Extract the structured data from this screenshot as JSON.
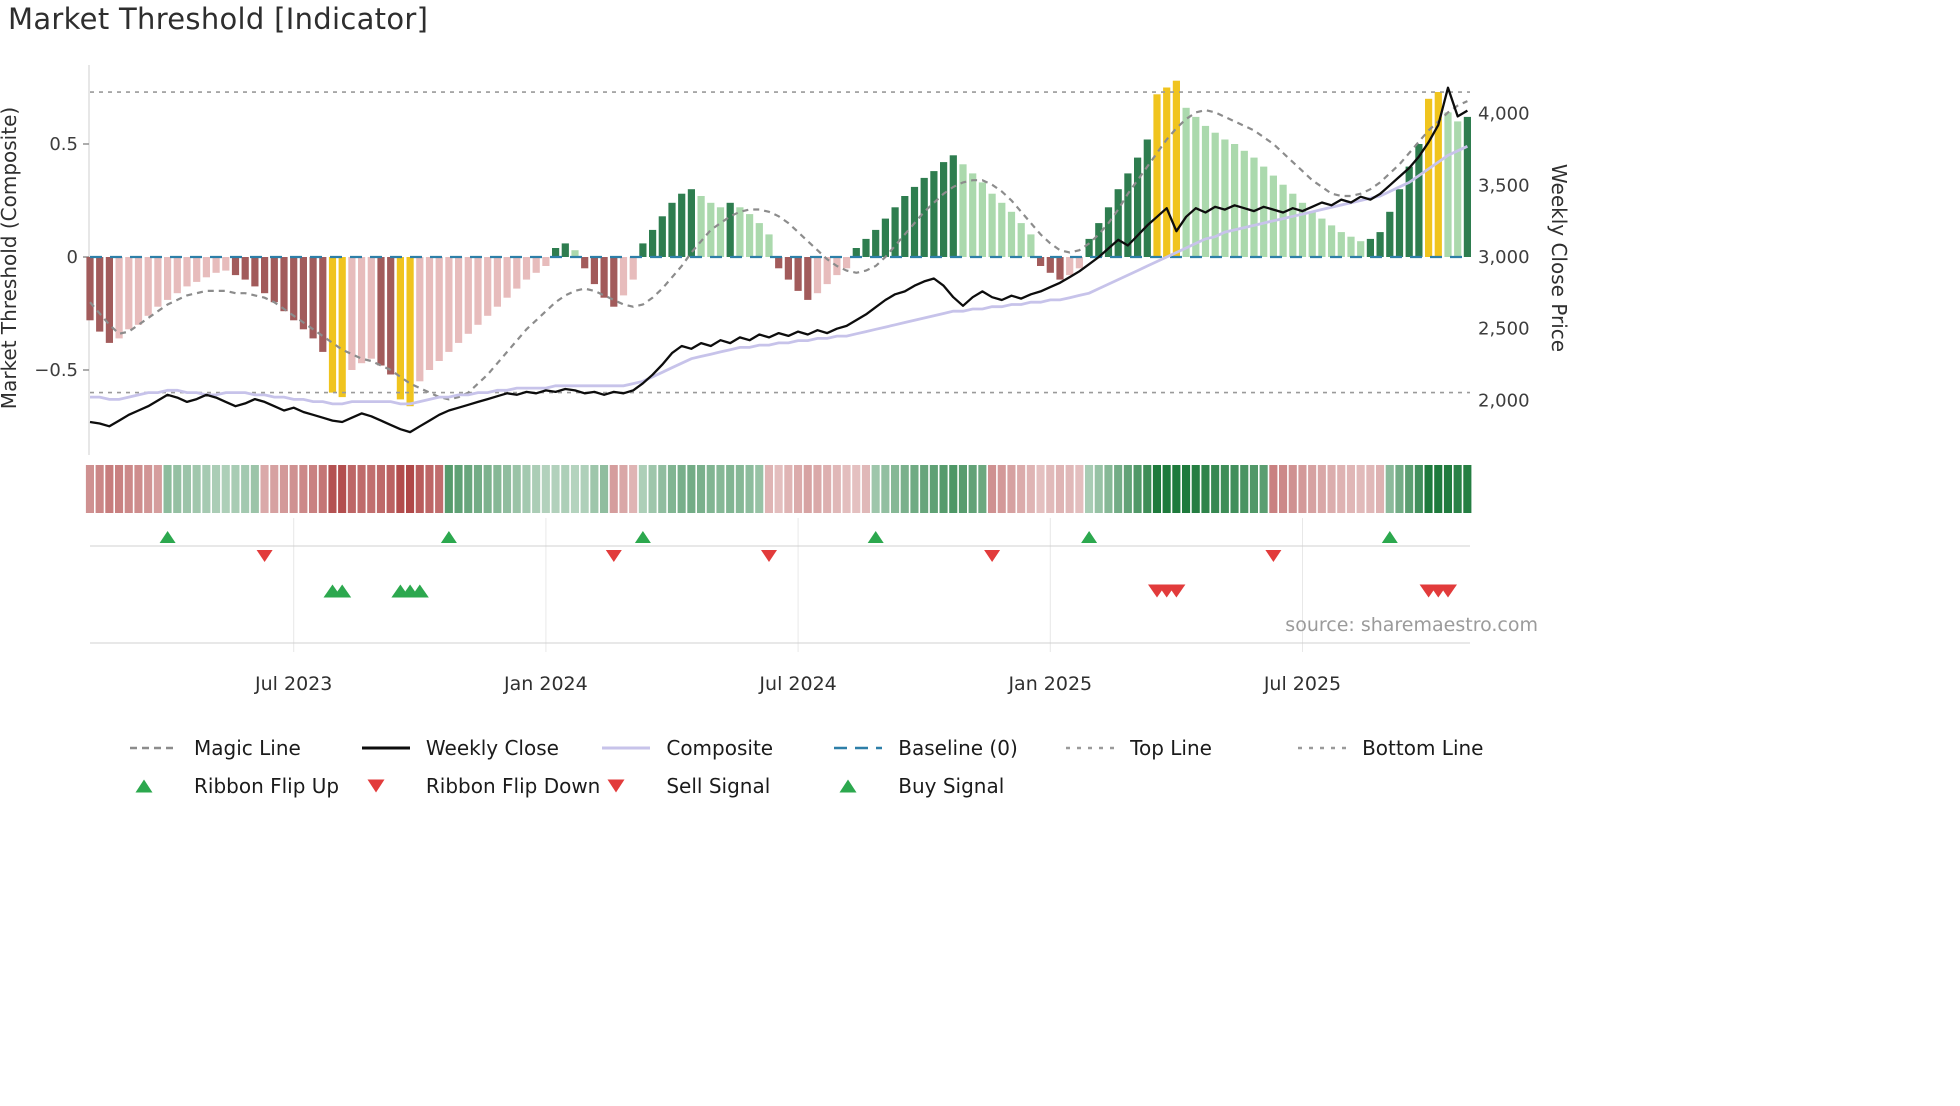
{
  "title": "Market Threshold [Indicator]",
  "source": "source: sharemaestro.com",
  "axes": {
    "left_label": "Market Threshold (Composite)",
    "right_label": "Weekly Close Price",
    "left_ticks": [
      {
        "label": "0.5",
        "value": 0.5
      },
      {
        "label": "0",
        "value": 0.0
      },
      {
        "label": "−0.5",
        "value": -0.5
      }
    ],
    "right_ticks": [
      {
        "label": "4,000",
        "value": 4000
      },
      {
        "label": "3,500",
        "value": 3500
      },
      {
        "label": "3,000",
        "value": 3000
      },
      {
        "label": "2,500",
        "value": 2500
      },
      {
        "label": "2,000",
        "value": 2000
      }
    ],
    "x_ticks": [
      {
        "label": "Jul 2023",
        "week": 21
      },
      {
        "label": "Jan 2024",
        "week": 47
      },
      {
        "label": "Jul 2024",
        "week": 73
      },
      {
        "label": "Jan 2025",
        "week": 99
      },
      {
        "label": "Jul 2025",
        "week": 125
      }
    ]
  },
  "colors": {
    "bar_dark_green": "#2e7d4f",
    "bar_light_green": "#abd9ad",
    "bar_dark_red": "#a25b5b",
    "bar_light_red": "#e7bcbc",
    "gold": "#f0c41e",
    "weekly_close": "#0d0d0d",
    "composite_line": "#c7c3ea",
    "magic_line": "#8c8c8c",
    "baseline": "#2d7fa8",
    "top_bottom_line": "#9a9a9a",
    "ribbon_green": "#1e7a3c",
    "ribbon_red": "#b04848",
    "signal_green": "#2ca84e",
    "signal_red": "#e23b3b"
  },
  "chart_data": {
    "type": "bar",
    "title": "Market Threshold [Indicator]",
    "x_unit": "week",
    "weeks": 143,
    "left_axis_range": [
      -0.87,
      0.85
    ],
    "right_axis_center": 3000,
    "right_units_per_left_unit": 1575,
    "reference_lines": {
      "baseline": 0,
      "top_line": 0.73,
      "bottom_line": -0.6
    },
    "thresholds": {
      "sell_gold": 0.68,
      "buy_gold": -0.58
    },
    "composite_bars": [
      -0.28,
      -0.33,
      -0.38,
      -0.36,
      -0.32,
      -0.3,
      -0.26,
      -0.22,
      -0.19,
      -0.16,
      -0.13,
      -0.11,
      -0.09,
      -0.07,
      -0.06,
      -0.08,
      -0.1,
      -0.13,
      -0.16,
      -0.2,
      -0.24,
      -0.28,
      -0.32,
      -0.36,
      -0.42,
      -0.6,
      -0.62,
      -0.5,
      -0.47,
      -0.45,
      -0.48,
      -0.52,
      -0.63,
      -0.66,
      -0.55,
      -0.5,
      -0.46,
      -0.42,
      -0.38,
      -0.34,
      -0.3,
      -0.26,
      -0.22,
      -0.18,
      -0.14,
      -0.1,
      -0.07,
      -0.04,
      0.04,
      0.06,
      0.03,
      -0.05,
      -0.12,
      -0.18,
      -0.22,
      -0.17,
      -0.1,
      0.06,
      0.12,
      0.18,
      0.24,
      0.28,
      0.3,
      0.27,
      0.24,
      0.22,
      0.24,
      0.22,
      0.19,
      0.15,
      0.1,
      -0.05,
      -0.1,
      -0.15,
      -0.19,
      -0.16,
      -0.12,
      -0.08,
      -0.05,
      0.04,
      0.08,
      0.12,
      0.17,
      0.22,
      0.27,
      0.31,
      0.35,
      0.38,
      0.42,
      0.45,
      0.41,
      0.37,
      0.33,
      0.28,
      0.24,
      0.2,
      0.15,
      0.1,
      -0.04,
      -0.07,
      -0.1,
      -0.08,
      -0.05,
      0.08,
      0.15,
      0.22,
      0.3,
      0.37,
      0.44,
      0.52,
      0.72,
      0.75,
      0.78,
      0.66,
      0.62,
      0.58,
      0.55,
      0.52,
      0.5,
      0.47,
      0.44,
      0.4,
      0.36,
      0.32,
      0.28,
      0.24,
      0.2,
      0.17,
      0.14,
      0.11,
      0.09,
      0.07,
      0.08,
      0.11,
      0.2,
      0.3,
      0.4,
      0.5,
      0.7,
      0.73,
      0.64,
      0.6,
      0.62
    ],
    "series": [
      {
        "name": "Magic Line",
        "axis": "left",
        "style": "dashed",
        "values": [
          -0.2,
          -0.25,
          -0.3,
          -0.34,
          -0.33,
          -0.3,
          -0.27,
          -0.24,
          -0.21,
          -0.19,
          -0.17,
          -0.16,
          -0.15,
          -0.15,
          -0.15,
          -0.16,
          -0.16,
          -0.17,
          -0.18,
          -0.2,
          -0.23,
          -0.26,
          -0.29,
          -0.32,
          -0.35,
          -0.38,
          -0.41,
          -0.43,
          -0.45,
          -0.46,
          -0.48,
          -0.5,
          -0.53,
          -0.56,
          -0.58,
          -0.6,
          -0.62,
          -0.63,
          -0.62,
          -0.6,
          -0.56,
          -0.52,
          -0.47,
          -0.42,
          -0.37,
          -0.32,
          -0.28,
          -0.24,
          -0.2,
          -0.17,
          -0.15,
          -0.14,
          -0.15,
          -0.17,
          -0.19,
          -0.21,
          -0.22,
          -0.21,
          -0.18,
          -0.14,
          -0.09,
          -0.04,
          0.02,
          0.07,
          0.12,
          0.15,
          0.18,
          0.2,
          0.21,
          0.21,
          0.2,
          0.18,
          0.15,
          0.11,
          0.07,
          0.03,
          -0.01,
          -0.04,
          -0.06,
          -0.07,
          -0.06,
          -0.04,
          0.0,
          0.05,
          0.1,
          0.15,
          0.2,
          0.24,
          0.28,
          0.31,
          0.33,
          0.34,
          0.34,
          0.32,
          0.29,
          0.25,
          0.2,
          0.15,
          0.1,
          0.06,
          0.03,
          0.02,
          0.03,
          0.06,
          0.1,
          0.15,
          0.21,
          0.28,
          0.34,
          0.4,
          0.46,
          0.52,
          0.57,
          0.61,
          0.64,
          0.65,
          0.64,
          0.62,
          0.6,
          0.58,
          0.56,
          0.53,
          0.5,
          0.46,
          0.42,
          0.38,
          0.34,
          0.31,
          0.28,
          0.27,
          0.27,
          0.28,
          0.3,
          0.33,
          0.37,
          0.41,
          0.46,
          0.51,
          0.56,
          0.6,
          0.64,
          0.67,
          0.69
        ]
      },
      {
        "name": "Composite",
        "axis": "left",
        "style": "solid",
        "values": [
          -0.62,
          -0.62,
          -0.63,
          -0.63,
          -0.62,
          -0.61,
          -0.6,
          -0.6,
          -0.59,
          -0.59,
          -0.6,
          -0.6,
          -0.61,
          -0.61,
          -0.6,
          -0.6,
          -0.6,
          -0.61,
          -0.61,
          -0.62,
          -0.62,
          -0.63,
          -0.63,
          -0.64,
          -0.64,
          -0.65,
          -0.65,
          -0.64,
          -0.64,
          -0.64,
          -0.64,
          -0.64,
          -0.65,
          -0.65,
          -0.64,
          -0.63,
          -0.62,
          -0.62,
          -0.61,
          -0.61,
          -0.6,
          -0.6,
          -0.59,
          -0.59,
          -0.58,
          -0.58,
          -0.58,
          -0.58,
          -0.57,
          -0.57,
          -0.57,
          -0.57,
          -0.57,
          -0.57,
          -0.57,
          -0.57,
          -0.56,
          -0.55,
          -0.53,
          -0.51,
          -0.49,
          -0.47,
          -0.45,
          -0.44,
          -0.43,
          -0.42,
          -0.41,
          -0.4,
          -0.4,
          -0.39,
          -0.39,
          -0.38,
          -0.38,
          -0.37,
          -0.37,
          -0.36,
          -0.36,
          -0.35,
          -0.35,
          -0.34,
          -0.33,
          -0.32,
          -0.31,
          -0.3,
          -0.29,
          -0.28,
          -0.27,
          -0.26,
          -0.25,
          -0.24,
          -0.24,
          -0.23,
          -0.23,
          -0.22,
          -0.22,
          -0.21,
          -0.21,
          -0.2,
          -0.2,
          -0.19,
          -0.19,
          -0.18,
          -0.17,
          -0.16,
          -0.14,
          -0.12,
          -0.1,
          -0.08,
          -0.06,
          -0.04,
          -0.02,
          0.0,
          0.02,
          0.04,
          0.06,
          0.08,
          0.09,
          0.11,
          0.12,
          0.13,
          0.14,
          0.15,
          0.16,
          0.17,
          0.18,
          0.19,
          0.2,
          0.21,
          0.22,
          0.23,
          0.24,
          0.25,
          0.26,
          0.27,
          0.29,
          0.31,
          0.33,
          0.36,
          0.39,
          0.42,
          0.45,
          0.47,
          0.49
        ]
      },
      {
        "name": "Weekly Close",
        "axis": "right",
        "style": "solid",
        "values": [
          1850,
          1840,
          1820,
          1860,
          1900,
          1930,
          1960,
          2000,
          2040,
          2020,
          1990,
          2010,
          2040,
          2020,
          1990,
          1960,
          1980,
          2010,
          1990,
          1960,
          1930,
          1950,
          1920,
          1900,
          1880,
          1860,
          1850,
          1880,
          1910,
          1890,
          1860,
          1830,
          1800,
          1780,
          1820,
          1860,
          1900,
          1930,
          1950,
          1970,
          1990,
          2010,
          2030,
          2050,
          2040,
          2060,
          2050,
          2070,
          2060,
          2080,
          2070,
          2050,
          2060,
          2040,
          2060,
          2050,
          2070,
          2120,
          2180,
          2250,
          2330,
          2380,
          2360,
          2400,
          2380,
          2420,
          2400,
          2440,
          2420,
          2460,
          2440,
          2470,
          2450,
          2480,
          2460,
          2490,
          2470,
          2500,
          2520,
          2560,
          2600,
          2650,
          2700,
          2740,
          2760,
          2800,
          2830,
          2850,
          2800,
          2720,
          2660,
          2720,
          2760,
          2720,
          2700,
          2730,
          2710,
          2740,
          2760,
          2790,
          2820,
          2860,
          2900,
          2950,
          3000,
          3060,
          3120,
          3080,
          3150,
          3220,
          3280,
          3340,
          3180,
          3280,
          3340,
          3310,
          3350,
          3330,
          3360,
          3340,
          3320,
          3350,
          3330,
          3310,
          3340,
          3320,
          3350,
          3380,
          3360,
          3400,
          3380,
          3420,
          3400,
          3440,
          3500,
          3560,
          3620,
          3700,
          3800,
          3920,
          4180,
          3980,
          4020
        ]
      }
    ],
    "signals": {
      "ribbon_flip_up_weeks": [
        8,
        37,
        57,
        81,
        103,
        134
      ],
      "ribbon_flip_down_weeks": [
        18,
        54,
        70,
        93,
        122
      ],
      "buy_signal_weeks": [
        25,
        26,
        32,
        33,
        34
      ],
      "sell_signal_weeks": [
        110,
        111,
        112,
        138,
        139,
        140
      ]
    },
    "ribbon_segments": [
      {
        "start": 0,
        "end": 7,
        "dir": "down"
      },
      {
        "start": 8,
        "end": 17,
        "dir": "up"
      },
      {
        "start": 18,
        "end": 36,
        "dir": "down"
      },
      {
        "start": 37,
        "end": 53,
        "dir": "up"
      },
      {
        "start": 54,
        "end": 56,
        "dir": "down"
      },
      {
        "start": 57,
        "end": 69,
        "dir": "up"
      },
      {
        "start": 70,
        "end": 80,
        "dir": "down"
      },
      {
        "start": 81,
        "end": 92,
        "dir": "up"
      },
      {
        "start": 93,
        "end": 102,
        "dir": "down"
      },
      {
        "start": 103,
        "end": 121,
        "dir": "up"
      },
      {
        "start": 122,
        "end": 133,
        "dir": "down"
      },
      {
        "start": 134,
        "end": 142,
        "dir": "up"
      }
    ]
  },
  "legend": {
    "rows": [
      [
        {
          "key": "magic-line",
          "label": "Magic Line",
          "swatch": "dash",
          "color": "#8c8c8c"
        },
        {
          "key": "weekly-close",
          "label": "Weekly Close",
          "swatch": "line",
          "color": "#0d0d0d"
        },
        {
          "key": "composite",
          "label": "Composite",
          "swatch": "line",
          "color": "#c7c3ea"
        },
        {
          "key": "baseline",
          "label": "Baseline (0)",
          "swatch": "dash-long",
          "color": "#2d7fa8"
        },
        {
          "key": "top-line",
          "label": "Top Line",
          "swatch": "dash-sparse",
          "color": "#9a9a9a"
        },
        {
          "key": "bottom-line",
          "label": "Bottom Line",
          "swatch": "dash-sparse",
          "color": "#9a9a9a"
        }
      ],
      [
        {
          "key": "ribbon-flip-up",
          "label": "Ribbon Flip Up",
          "swatch": "tri-up",
          "color": "#2ca84e"
        },
        {
          "key": "ribbon-flip-down",
          "label": "Ribbon Flip Down",
          "swatch": "tri-down",
          "color": "#e23b3b"
        },
        {
          "key": "sell-signal",
          "label": "Sell Signal",
          "swatch": "tri-down",
          "color": "#e23b3b"
        },
        {
          "key": "buy-signal",
          "label": "Buy Signal",
          "swatch": "tri-up",
          "color": "#2ca84e"
        }
      ]
    ]
  }
}
